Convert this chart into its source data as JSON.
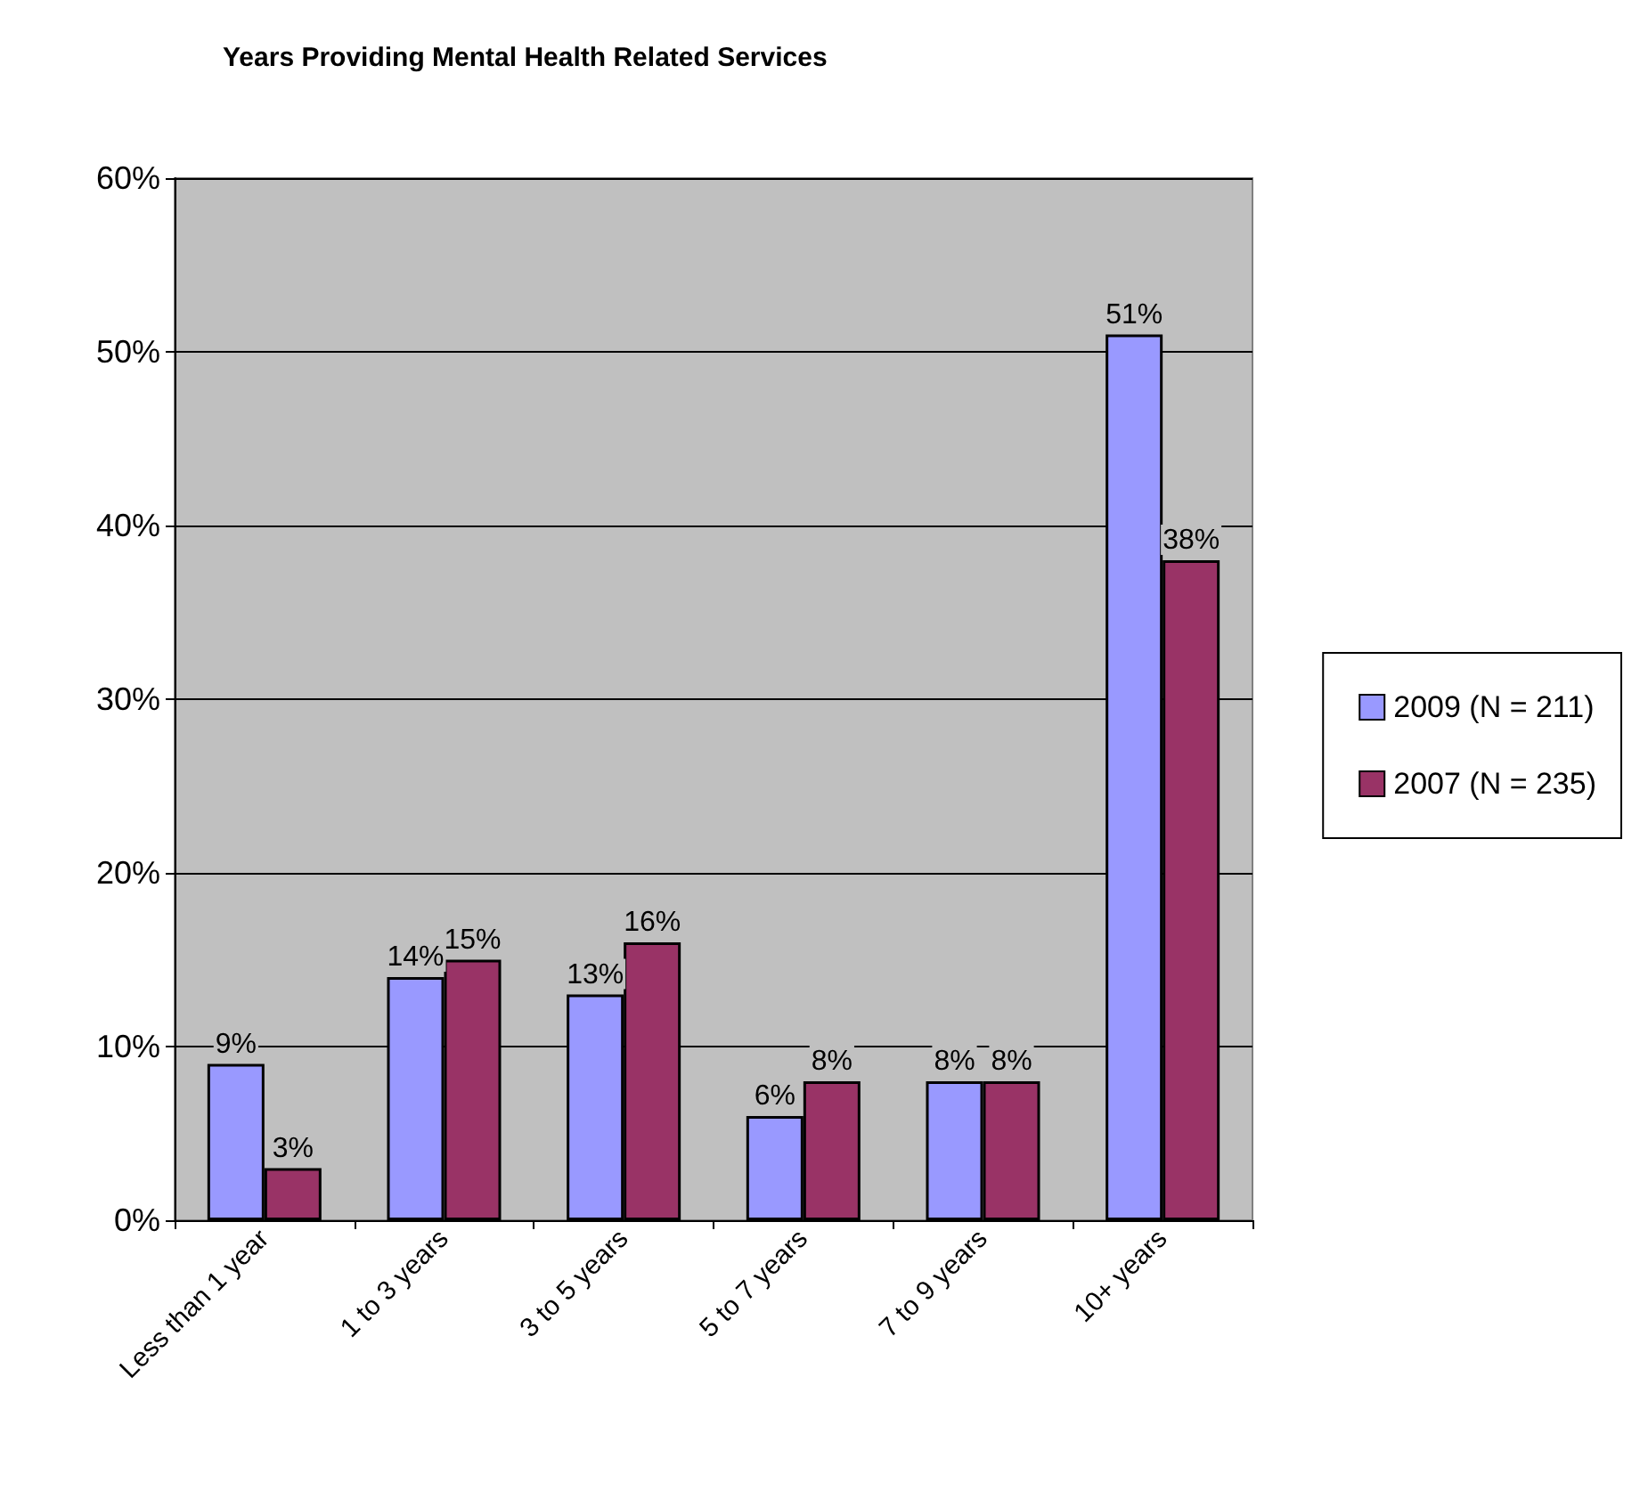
{
  "chart_data": {
    "type": "bar",
    "title": "Years Providing Mental Health Related Services",
    "categories": [
      "Less than 1 year",
      "1 to 3 years",
      "3 to 5 years",
      "5 to 7 years",
      "7 to 9 years",
      "10+ years"
    ],
    "series": [
      {
        "name": "2009 (N = 211)",
        "color": "#9999ff",
        "values": [
          9,
          14,
          13,
          6,
          8,
          51
        ],
        "value_labels": [
          "9%",
          "14%",
          "13%",
          "6%",
          "8%",
          "51%"
        ]
      },
      {
        "name": "2007 (N = 235)",
        "color": "#993366",
        "values": [
          3,
          15,
          16,
          8,
          8,
          38
        ],
        "value_labels": [
          "3%",
          "15%",
          "16%",
          "8%",
          "8%",
          "38%"
        ]
      }
    ],
    "ylim": [
      0,
      60
    ],
    "yticks": [
      {
        "value": 0,
        "label": "0%"
      },
      {
        "value": 10,
        "label": "10%"
      },
      {
        "value": 20,
        "label": "20%"
      },
      {
        "value": 30,
        "label": "30%"
      },
      {
        "value": 40,
        "label": "40%"
      },
      {
        "value": 50,
        "label": "50%"
      },
      {
        "value": 60,
        "label": "60%"
      }
    ],
    "grid": "y",
    "legend": "right"
  }
}
